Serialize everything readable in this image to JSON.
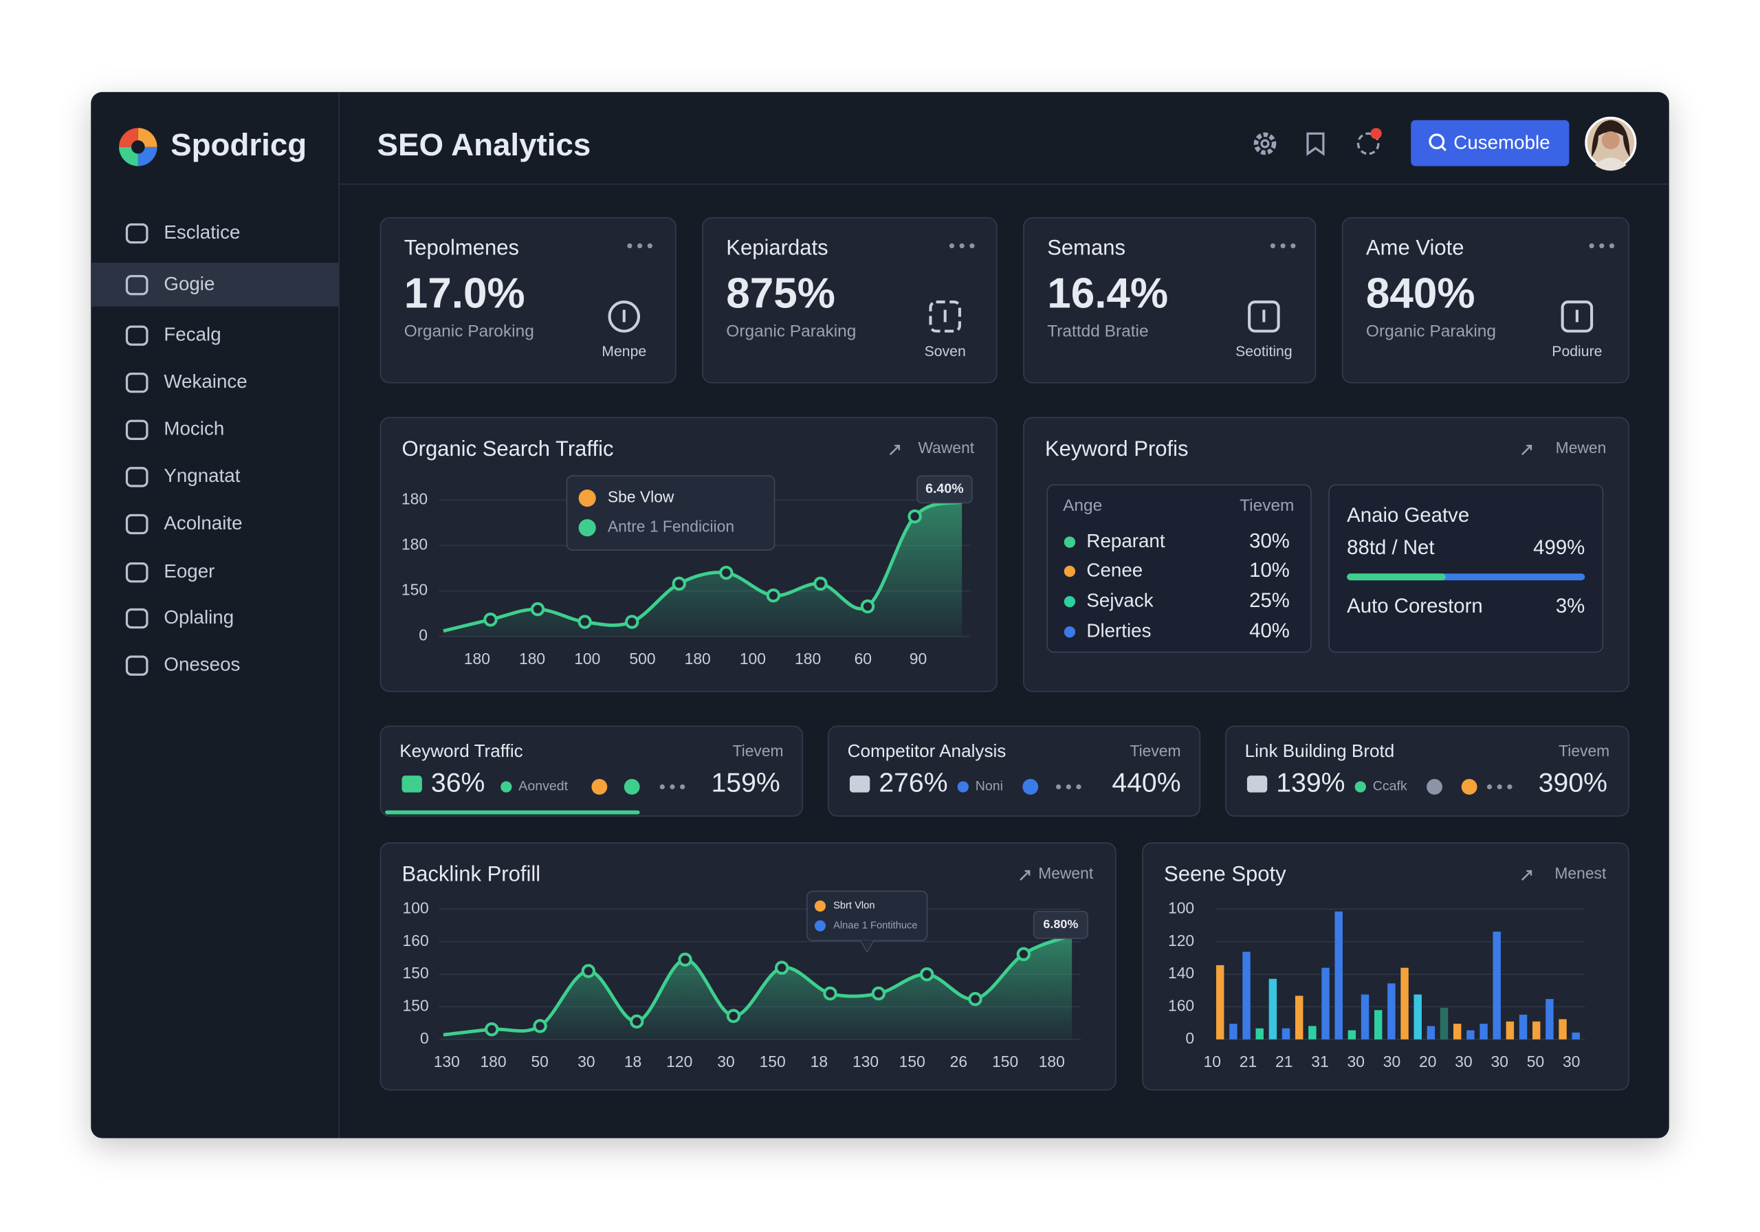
{
  "sidebar": {
    "brand": "Spodricg",
    "items": [
      "Esclatice",
      "Gogie",
      "Fecalg",
      "Wekaince",
      "Mocich",
      "Yngnatat",
      "Acolnaite",
      "Eoger",
      "Oplaling",
      "Oneseos"
    ]
  },
  "header": {
    "title": "SEO Analytics",
    "button": "Cusemoble"
  },
  "stat_cards": [
    {
      "title": "Tepolmenes",
      "value": "17.0%",
      "subtitle": "Organic Paroking",
      "icon_label": "Menpe"
    },
    {
      "title": "Kepiardats",
      "value": "875%",
      "subtitle": "Organic Paraking",
      "icon_label": "Soven"
    },
    {
      "title": "Semans",
      "value": "16.4%",
      "subtitle": "Trattdd Bratie",
      "icon_label": "Seotiting"
    },
    {
      "title": "Ame Viote",
      "value": "840%",
      "subtitle": "Organic Paraking",
      "icon_label": "Podiure"
    }
  ],
  "traffic_chart": {
    "type": "line",
    "title": "Organic Search Traffic",
    "action": "Wawent",
    "annotation": "6.40%",
    "legend": [
      {
        "name": "Sbe Vlow",
        "color": "#f5a23a"
      },
      {
        "name": "Antre 1 Fendiciion",
        "color": "#3ecf8e"
      }
    ],
    "x_labels": [
      "180",
      "180",
      "100",
      "500",
      "180",
      "100",
      "180",
      "60",
      "90"
    ],
    "values": [
      0.12,
      0.37,
      0.6,
      0.32,
      0.32,
      1.16,
      1.4,
      0.9,
      1.16,
      0.66,
      2.64,
      2.96
    ],
    "color": "#3ecf8e",
    "ylim": [
      0,
      4
    ],
    "yticks": [
      0,
      {
        "value": 1,
        "label": "150"
      },
      {
        "value": 2,
        "label": "180"
      },
      {
        "value": 3,
        "label": "180"
      }
    ],
    "grid": true
  },
  "keyword_profile": {
    "title": "Keyword Profis",
    "action": "Mewen",
    "table": {
      "header": [
        "Ange",
        "Tievem"
      ],
      "rows": [
        {
          "label": "Reparant",
          "value": "30%",
          "color": "#3ecf8e"
        },
        {
          "label": "Cenee",
          "value": "10%",
          "color": "#f5a23a"
        },
        {
          "label": "Sejvack",
          "value": "25%",
          "color": "#2fd0a0"
        },
        {
          "label": "Dlerties",
          "value": "40%",
          "color": "#3b7be8"
        }
      ]
    },
    "summary": {
      "title": "Anaio Geatve",
      "row1": [
        "88td / Net",
        "499%"
      ],
      "row2": [
        "Auto Corestorn",
        "3%"
      ]
    }
  },
  "mini_cards": [
    {
      "title": "Keyword Traffic",
      "action": "Tievem",
      "value": "36%",
      "tag": "Aonvedt",
      "total": "159%"
    },
    {
      "title": "Competitor Analysis",
      "action": "Tievem",
      "value": "276%",
      "tag": "Noni",
      "total": "440%"
    },
    {
      "title": "Link Building Brotd",
      "action": "Tievem",
      "value": "139%",
      "tag": "Ccafk",
      "total": "390%"
    }
  ],
  "backlink_chart": {
    "type": "line",
    "title": "Backlink Profill",
    "action": "Mewent",
    "annotation": "6.80%",
    "legend": [
      {
        "name": "Sbrt Vlon",
        "color": "#f5a23a"
      },
      {
        "name": "Alnae 1 Fontithuce",
        "color": "#3b7be8"
      }
    ],
    "x_labels": [
      "130",
      "180",
      "50",
      "30",
      "18",
      "120",
      "30",
      "150",
      "18",
      "130",
      "150",
      "26",
      "150",
      "180"
    ],
    "values": [
      0.14,
      0.31,
      0.41,
      2.1,
      0.55,
      2.45,
      0.72,
      2.2,
      1.41,
      1.41,
      2.0,
      1.24,
      2.62,
      3.2
    ],
    "color": "#3ecf8e",
    "ylim": [
      0,
      4
    ],
    "yticks": [
      0,
      {
        "value": 1,
        "label": "150"
      },
      {
        "value": 2,
        "label": "150"
      },
      {
        "value": 3,
        "label": "160"
      },
      {
        "value": 4,
        "label": "100"
      }
    ],
    "grid": true
  },
  "spot_chart": {
    "type": "bar",
    "title": "Seene Spoty",
    "action": "Menest",
    "x_labels": [
      "10",
      "21",
      "21",
      "31",
      "30",
      "30",
      "20",
      "30",
      "30",
      "50",
      "30"
    ],
    "values": [
      2.28,
      0.48,
      2.69,
      0.34,
      1.86,
      0.34,
      1.34,
      0.41,
      2.2,
      3.93,
      0.28,
      1.38,
      0.9,
      1.72,
      2.2,
      1.38,
      0.41,
      0.97,
      0.48,
      0.28,
      0.48,
      3.31,
      0.55,
      0.76,
      0.55,
      1.24,
      0.62,
      0.21
    ],
    "colors": [
      "#f5a23a",
      "#3b7be8",
      "#3b7be8",
      "#2fd0a0",
      "#38c6e0",
      "#3b7be8",
      "#f5a23a",
      "#2fd0a0",
      "#3b7be8",
      "#3b7be8",
      "#2fd0a0",
      "#3b7be8",
      "#2fd0a0",
      "#3b7be8",
      "#f5a23a",
      "#38c6e0",
      "#3b7be8",
      "#2a6f64",
      "#f5a23a",
      "#3b7be8",
      "#3b7be8",
      "#3b7be8",
      "#f5a23a",
      "#3b7be8",
      "#f5a23a",
      "#3b7be8",
      "#f5a23a",
      "#3b7be8"
    ],
    "ylim": [
      0,
      4
    ],
    "yticks": [
      0,
      {
        "value": 1,
        "label": "160"
      },
      {
        "value": 2,
        "label": "140"
      },
      {
        "value": 3,
        "label": "120"
      },
      {
        "value": 4,
        "label": "100"
      }
    ],
    "grid": true
  }
}
